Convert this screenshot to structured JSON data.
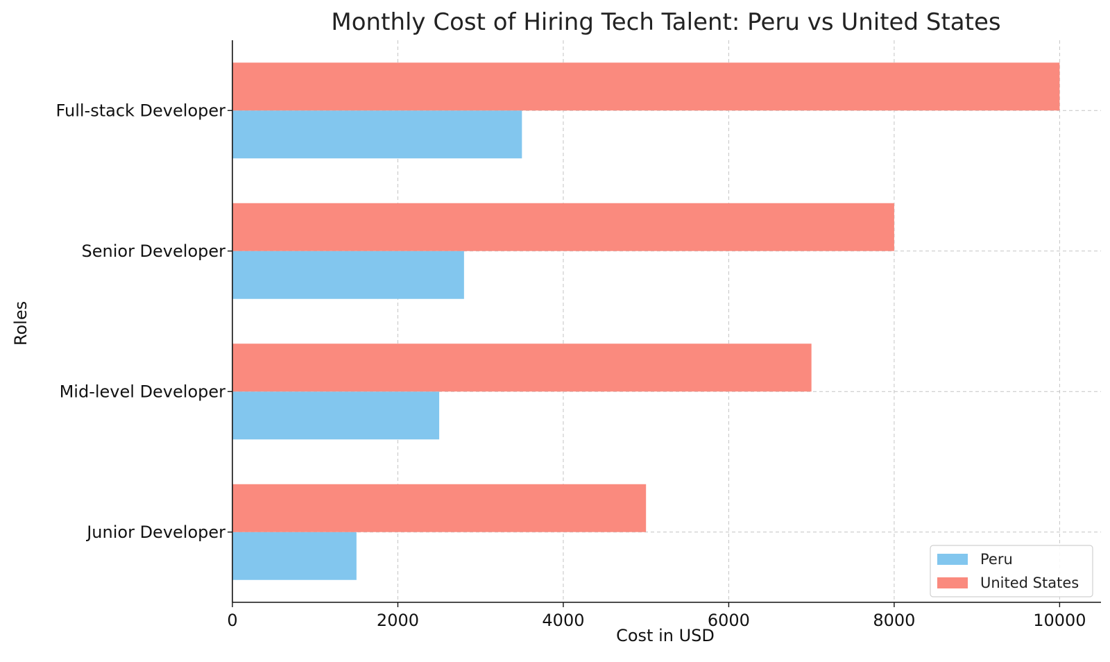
{
  "chart_data": {
    "type": "bar",
    "orientation": "horizontal",
    "title": "Monthly Cost of Hiring Tech Talent: Peru vs United States",
    "xlabel": "Cost in USD",
    "ylabel": "Roles",
    "categories": [
      "Junior Developer",
      "Mid-level Developer",
      "Senior Developer",
      "Full-stack Developer"
    ],
    "series": [
      {
        "name": "Peru",
        "values": [
          1500,
          2500,
          2800,
          3500
        ],
        "color": "#82c6ee"
      },
      {
        "name": "United States",
        "values": [
          5000,
          7000,
          8000,
          10000
        ],
        "color": "#fa8a7e"
      }
    ],
    "xlim": [
      0,
      10500
    ],
    "xticks": [
      0,
      2000,
      4000,
      6000,
      8000,
      10000
    ],
    "grid": true,
    "legend": "bottom-right"
  }
}
